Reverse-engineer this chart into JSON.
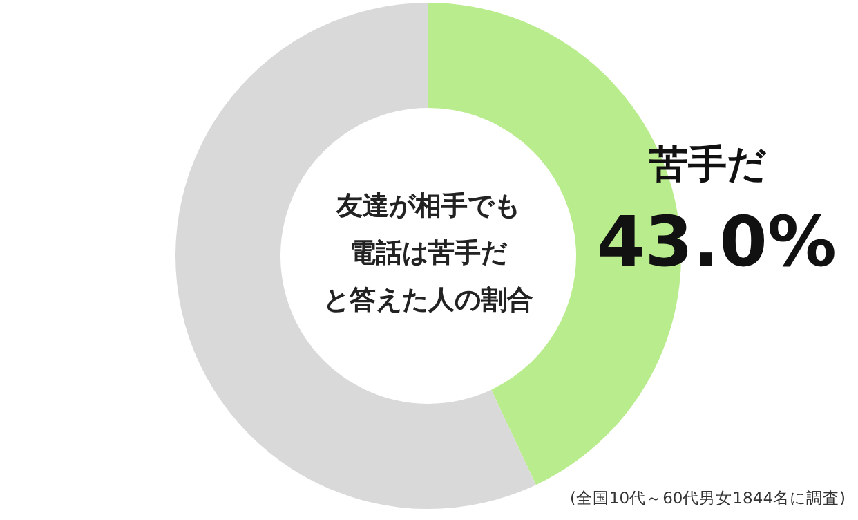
{
  "chart_data": {
    "type": "donut",
    "categories": [
      "苦手だ",
      null
    ],
    "values": [
      43.0,
      57.0
    ],
    "colors": [
      "#b9ec8c",
      "#d9d9d9"
    ],
    "value_labels": [
      "43.0%",
      null
    ],
    "legend": false,
    "annotations": [
      "友達が相手でも",
      "電話は苦手だ",
      "と答えた人の割合",
      "(全国10代～60代男女1844名に調査)"
    ]
  }
}
